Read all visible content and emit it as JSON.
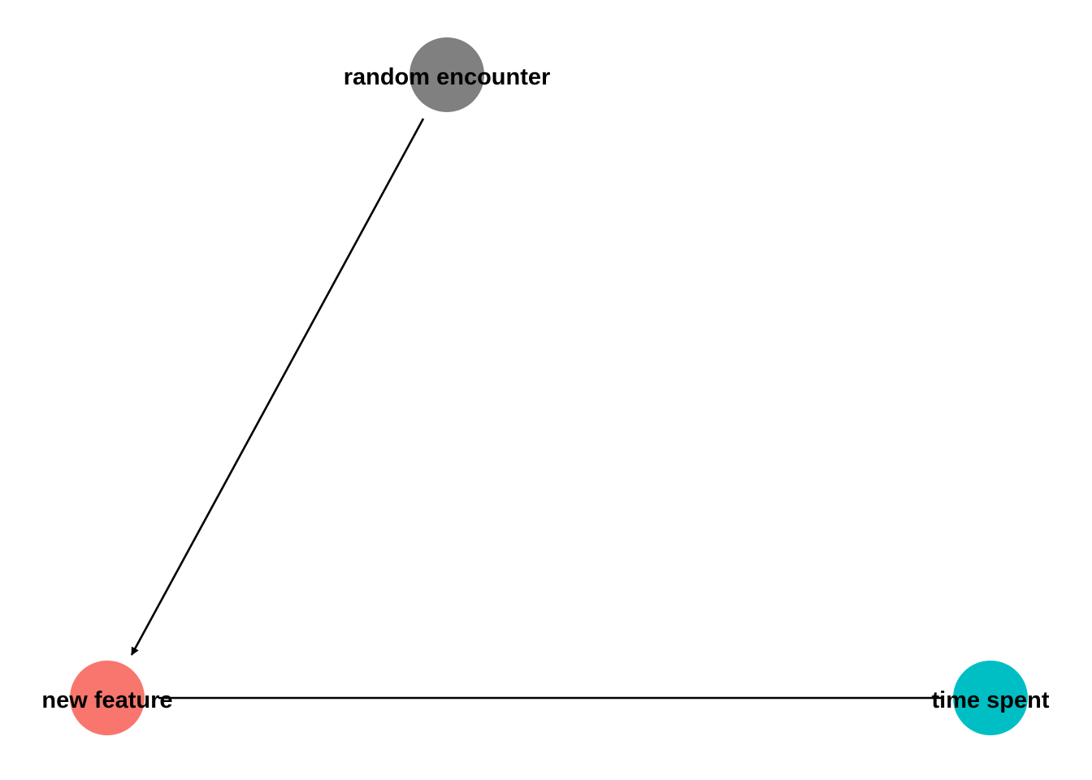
{
  "diagram": {
    "type": "directed-acyclic-graph",
    "nodes": [
      {
        "id": "random_encounter",
        "label": "random encounter",
        "color": "#808080"
      },
      {
        "id": "new_feature",
        "label": "new feature",
        "color": "#F8766D"
      },
      {
        "id": "time_spent",
        "label": "time spent",
        "color": "#00BFC4"
      }
    ],
    "edges": [
      {
        "from": "random_encounter",
        "to": "new_feature",
        "arrow": true
      },
      {
        "from": "new_feature",
        "to": "time_spent",
        "arrow": false
      }
    ]
  }
}
